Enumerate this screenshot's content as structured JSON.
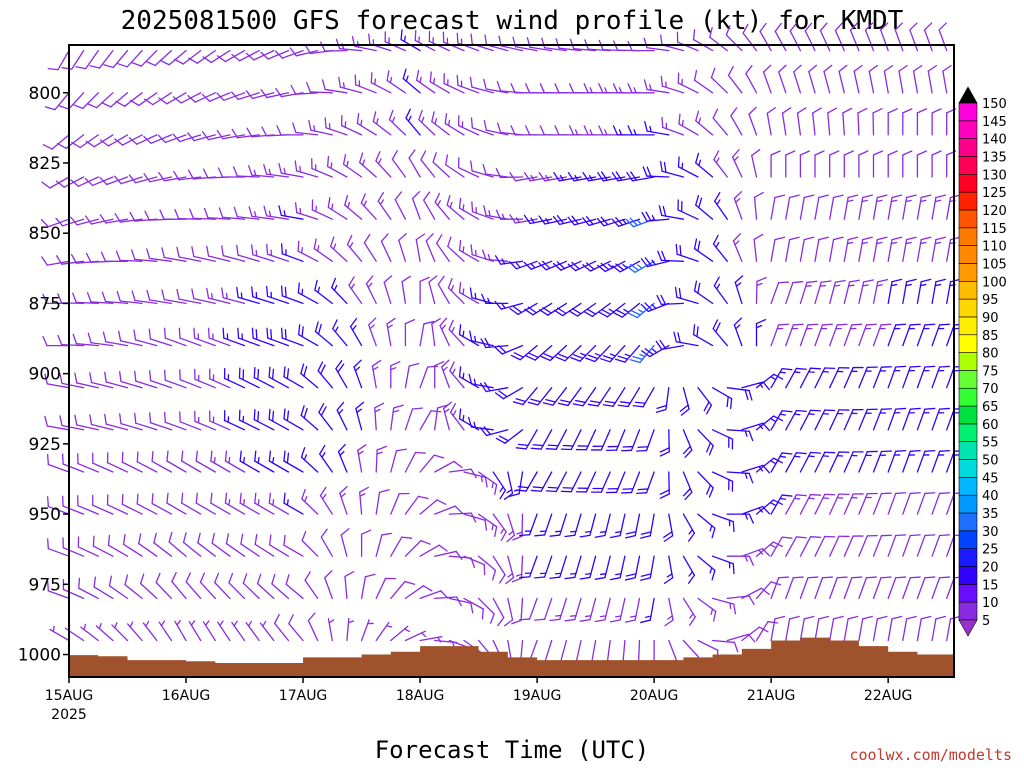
{
  "chart_data": {
    "type": "wind-barb-profile",
    "title": "2025081500 GFS forecast wind profile (kt) for KMDT",
    "xlabel": "Forecast Time (UTC)",
    "credit": "coolwx.com/modelts",
    "y_ticks": [
      "800",
      "825",
      "850",
      "875",
      "900",
      "925",
      "950",
      "975",
      "1000"
    ],
    "y_range_hpa": [
      1008,
      783
    ],
    "x_ticks": [
      "15AUG",
      "16AUG",
      "17AUG",
      "18AUG",
      "19AUG",
      "20AUG",
      "21AUG",
      "22AUG"
    ],
    "x_year": "2025",
    "x_range_hours": [
      0,
      181.5
    ],
    "colorbar": {
      "levels": [
        "5",
        "10",
        "15",
        "20",
        "25",
        "30",
        "35",
        "40",
        "45",
        "50",
        "55",
        "60",
        "65",
        "70",
        "75",
        "80",
        "85",
        "90",
        "95",
        "100",
        "105",
        "110",
        "115",
        "120",
        "125",
        "130",
        "135",
        "140",
        "145",
        "150"
      ],
      "colors": [
        "#8a2be2",
        "#6a0dfe",
        "#3300ff",
        "#1a1aff",
        "#0044ff",
        "#1e6fff",
        "#0099ff",
        "#00b7ff",
        "#00dcdc",
        "#00e5b0",
        "#00f070",
        "#00e040",
        "#33ff33",
        "#66ff33",
        "#aaff00",
        "#ffff00",
        "#ffee00",
        "#ffd700",
        "#ffbb00",
        "#ff9900",
        "#ff8800",
        "#ff7a00",
        "#ff5500",
        "#ff2200",
        "#ff0022",
        "#ff0055",
        "#ff0088",
        "#ff00bb",
        "#ff00dd",
        "#ff00ff"
      ],
      "top_color": "#000000",
      "bottom_color": "#9932cc"
    },
    "terrain": {
      "color": "#a0522d",
      "hours": [
        0,
        6,
        12,
        18,
        24,
        30,
        36,
        42,
        48,
        54,
        60,
        66,
        72,
        78,
        84,
        90,
        96,
        102,
        108,
        114,
        120,
        126,
        132,
        138,
        144,
        150,
        156,
        162,
        168,
        174,
        181.5
      ],
      "surface_pressure_hpa": [
        1000.2,
        1000.6,
        1002,
        1002,
        1002.4,
        1003,
        1003,
        1003,
        1001,
        1001,
        1000,
        999,
        997,
        997,
        999,
        1001,
        1002,
        1002,
        1002,
        1002,
        1002,
        1001,
        1000,
        998,
        995,
        994,
        995,
        997,
        999,
        1000,
        1002
      ]
    },
    "wind_colors": {
      "light": "#8a2be2",
      "moderate": "#3300ff",
      "strong": "#1a66ff"
    },
    "wind_speeds_kt_note": "",
    "wind_barbs": {
      "levels_hpa": [
        785,
        800,
        815,
        830,
        845,
        860,
        875,
        890,
        905,
        920,
        935,
        950,
        965,
        980,
        995
      ],
      "hours_step": 3,
      "samples": [
        {
          "h": 0,
          "dir": [
            210,
            220,
            230,
            240,
            250,
            260,
            270,
            270,
            280,
            280,
            290,
            290,
            290,
            290,
            300
          ],
          "spd": [
            10,
            10,
            10,
            10,
            10,
            10,
            10,
            10,
            10,
            10,
            10,
            10,
            8,
            8,
            5
          ]
        },
        {
          "h": 24,
          "dir": [
            230,
            240,
            250,
            260,
            270,
            280,
            280,
            290,
            290,
            290,
            300,
            300,
            310,
            320,
            330
          ],
          "spd": [
            8,
            8,
            8,
            8,
            8,
            8,
            10,
            10,
            10,
            10,
            10,
            10,
            8,
            8,
            5
          ]
        },
        {
          "h": 48,
          "dir": [
            250,
            260,
            270,
            280,
            280,
            290,
            290,
            290,
            300,
            300,
            300,
            300,
            300,
            310,
            320
          ],
          "spd": [
            10,
            10,
            12,
            14,
            15,
            15,
            18,
            20,
            22,
            20,
            18,
            15,
            12,
            10,
            8
          ]
        },
        {
          "h": 72,
          "dir": [
            300,
            310,
            320,
            330,
            340,
            350,
            0,
            10,
            20,
            30,
            40,
            50,
            60,
            70,
            80
          ],
          "spd": [
            15,
            15,
            15,
            12,
            12,
            10,
            10,
            10,
            10,
            10,
            10,
            10,
            8,
            8,
            5
          ]
        },
        {
          "h": 96,
          "dir": [
            280,
            270,
            270,
            260,
            260,
            250,
            240,
            230,
            220,
            210,
            210,
            200,
            200,
            200,
            200
          ],
          "spd": [
            10,
            10,
            10,
            12,
            14,
            16,
            18,
            20,
            20,
            20,
            18,
            15,
            15,
            12,
            10
          ]
        },
        {
          "h": 120,
          "dir": [
            270,
            270,
            270,
            260,
            250,
            240,
            230,
            220,
            210,
            200,
            200,
            190,
            190,
            190,
            180
          ],
          "spd": [
            12,
            14,
            16,
            20,
            25,
            25,
            25,
            25,
            22,
            20,
            20,
            18,
            18,
            15,
            10
          ]
        },
        {
          "h": 144,
          "dir": [
            330,
            340,
            350,
            0,
            10,
            10,
            20,
            20,
            30,
            30,
            30,
            30,
            30,
            20,
            10
          ],
          "spd": [
            10,
            10,
            10,
            10,
            10,
            10,
            12,
            14,
            15,
            15,
            15,
            15,
            12,
            10,
            8
          ]
        },
        {
          "h": 168,
          "dir": [
            340,
            350,
            0,
            0,
            10,
            10,
            10,
            20,
            20,
            20,
            20,
            20,
            20,
            20,
            10
          ],
          "spd": [
            10,
            10,
            12,
            12,
            14,
            14,
            15,
            15,
            15,
            15,
            15,
            12,
            12,
            10,
            8
          ]
        }
      ]
    }
  }
}
